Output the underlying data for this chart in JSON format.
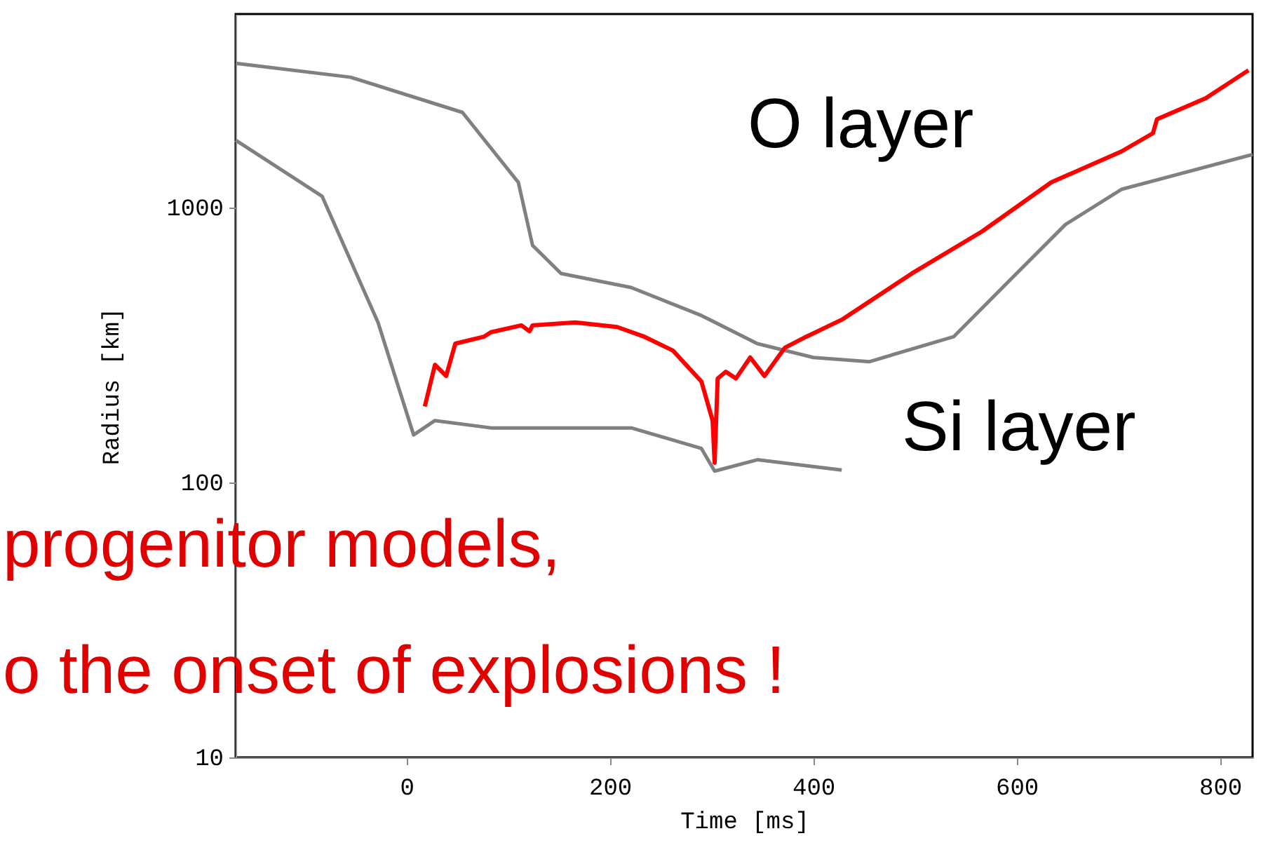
{
  "chart_data": {
    "type": "line",
    "xlabel": "Time [ms]",
    "ylabel": "Radius [km]",
    "log": true,
    "grid": false,
    "marker": "none",
    "line_style": "solid",
    "xlim": [
      -168,
      832
    ],
    "xticks": [
      0,
      200,
      400,
      600,
      800
    ],
    "ylim": [
      10,
      5060
    ],
    "yticks": [
      10,
      100,
      {
        "value": 1000,
        "label": "1000"
      }
    ],
    "series": [
      {
        "color": "#808080",
        "x": [
          -168,
          -55,
          55,
          110,
          124,
          152,
          221,
          290,
          345,
          400,
          455,
          538,
          593,
          648,
          703,
          832
        ],
        "values": [
          3350,
          2980,
          2220,
          1235,
          728,
          576,
          512,
          405,
          320,
          285,
          275,
          339,
          543,
          868,
          1165,
          1560
        ]
      },
      {
        "color": "#808080",
        "x": [
          -168,
          -83,
          -28,
          7,
          28,
          83,
          221,
          290,
          303,
          345,
          428
        ],
        "values": [
          1760,
          1100,
          382,
          149,
          168,
          158,
          158,
          133,
          110,
          121,
          111
        ]
      },
      {
        "color": "#ff0000",
        "x": [
          18,
          28,
          39,
          48,
          76,
          83,
          113,
          121,
          124,
          166,
          207,
          234,
          262,
          290,
          301,
          303,
          306,
          314,
          324,
          338,
          352,
          372,
          393,
          428,
          497,
          566,
          634,
          703,
          734,
          738,
          786,
          828
        ],
        "values": [
          189,
          268,
          244,
          320,
          339,
          352,
          373,
          355,
          373,
          382,
          368,
          339,
          302,
          233,
          168,
          118,
          239,
          253,
          239,
          285,
          244,
          309,
          339,
          391,
          576,
          819,
          1236,
          1600,
          1864,
          2095,
          2500,
          3160
        ]
      }
    ],
    "annotations": [
      "O layer",
      "Si layer",
      "progenitor models,",
      "o the onset of explosions !"
    ]
  }
}
